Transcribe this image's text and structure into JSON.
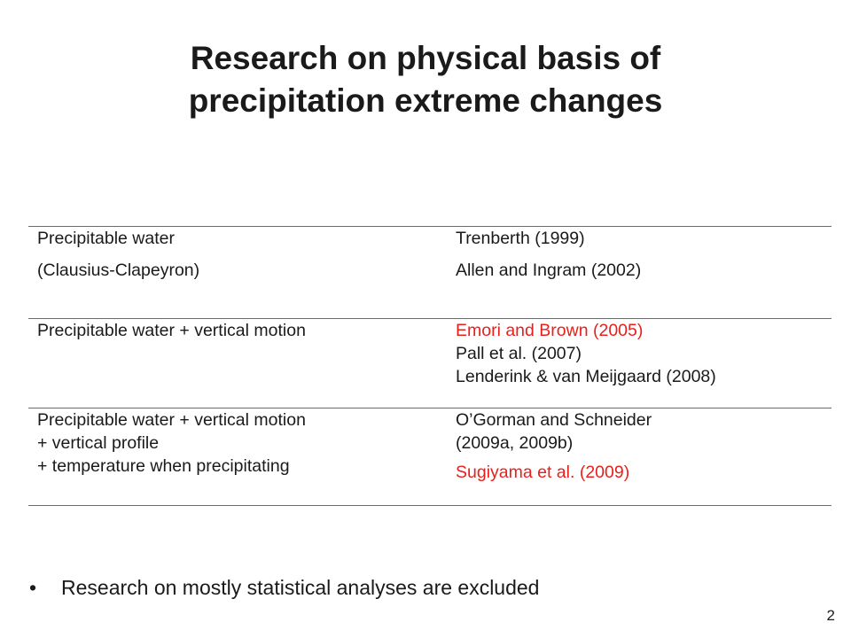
{
  "title": {
    "line1": "Research on physical basis of",
    "line2": "precipitation extreme changes"
  },
  "table": {
    "rows": [
      {
        "mechanism": [
          "Precipitable water",
          "(Clausius-Clapeyron)"
        ],
        "references": [
          "Trenberth (1999)",
          "Allen and Ingram (2002)"
        ]
      },
      {
        "mechanism": [
          "Precipitable water + vertical motion"
        ],
        "references": [
          "Emori and Brown (2005)",
          "Pall et al. (2007)",
          "Lenderink & van Meijgaard (2008)"
        ]
      },
      {
        "mechanism": [
          "Precipitable water + vertical motion",
          "+ vertical profile",
          "+ temperature when precipitating"
        ],
        "references": [
          "O’Gorman and Schneider",
          "(2009a, 2009b)",
          "Sugiyama et al. (2009)"
        ]
      }
    ]
  },
  "highlight_color": "#e8201c",
  "bullet": {
    "symbol": "•",
    "text": "Research on mostly statistical analyses are excluded"
  },
  "page_number": "2"
}
